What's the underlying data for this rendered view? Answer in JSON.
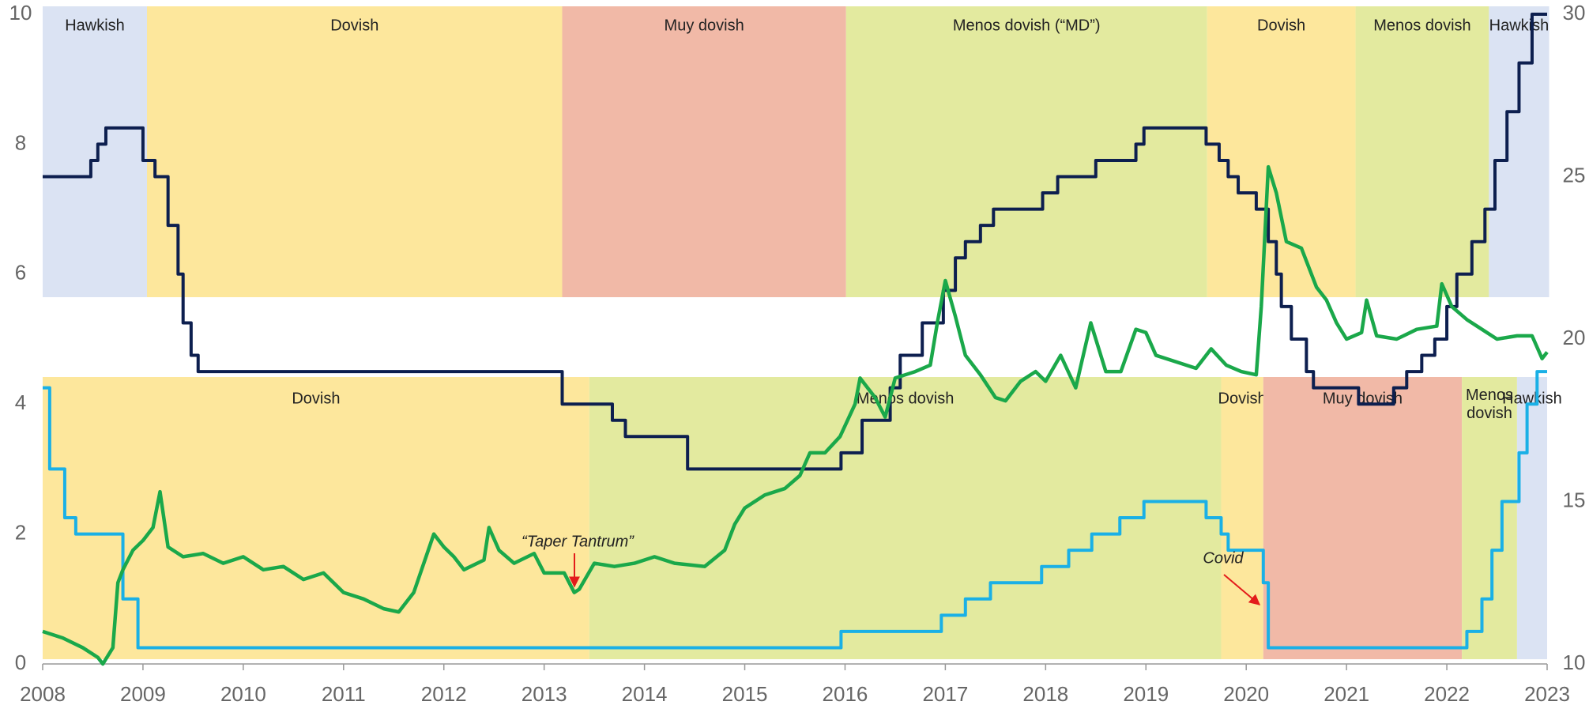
{
  "chart_data": {
    "type": "line",
    "drawstyle": "steps-post",
    "xlim": [
      2008,
      2023
    ],
    "xticks": [
      2008,
      2009,
      2010,
      2011,
      2012,
      2013,
      2014,
      2015,
      2016,
      2017,
      2018,
      2019,
      2020,
      2021,
      2022,
      2023
    ],
    "ylim": [
      0,
      10
    ],
    "yticks": [
      0,
      2,
      4,
      6,
      8,
      10
    ],
    "y2lim": [
      10,
      30
    ],
    "y2ticks": [
      10,
      15,
      20,
      25,
      30
    ],
    "grid": false,
    "bands": {
      "top": [
        {
          "label": "Hawkish",
          "start": 2008.0,
          "end": 2009.04,
          "color": "#dbe3f3"
        },
        {
          "label": "Dovish",
          "start": 2009.04,
          "end": 2013.18,
          "color": "#fde79c"
        },
        {
          "label": "Muy dovish",
          "start": 2013.18,
          "end": 2016.01,
          "color": "#f1b9a7"
        },
        {
          "label": "Menos dovish (“MD”)",
          "start": 2016.01,
          "end": 2019.61,
          "color": "#e3ea9f"
        },
        {
          "label": "Dovish",
          "start": 2019.61,
          "end": 2021.09,
          "color": "#fde79c"
        },
        {
          "label": "Menos dovish",
          "start": 2021.09,
          "end": 2022.42,
          "color": "#e3ea9f"
        },
        {
          "label": "Hawkish",
          "start": 2022.42,
          "end": 2023.02,
          "color": "#dbe3f3"
        }
      ],
      "bottom": [
        {
          "label": "Dovish",
          "start": 2008.0,
          "end": 2013.45,
          "color": "#fde79c"
        },
        {
          "label": "Menos dovish",
          "start": 2013.45,
          "end": 2019.75,
          "color": "#e3ea9f"
        },
        {
          "label": "Dovish",
          "start": 2019.75,
          "end": 2020.17,
          "color": "#fde79c"
        },
        {
          "label": "Muy dovish",
          "start": 2020.17,
          "end": 2022.15,
          "color": "#f1b9a7"
        },
        {
          "label": "Menos dovish",
          "start": 2022.15,
          "end": 2022.7,
          "color": "#e3ea9f"
        },
        {
          "label": "Hawkish",
          "start": 2022.7,
          "end": 2023.0,
          "color": "#dbe3f3"
        }
      ]
    },
    "series": [
      {
        "color": "#1ab0e6",
        "axis": "y",
        "step": true,
        "x": [
          2008.0,
          2008.07,
          2008.22,
          2008.33,
          2008.8,
          2008.95,
          2015.96,
          2016.96,
          2017.2,
          2017.45,
          2017.96,
          2018.23,
          2018.46,
          2018.74,
          2018.98,
          2019.6,
          2019.75,
          2019.82,
          2020.17,
          2020.22,
          2022.2,
          2022.35,
          2022.45,
          2022.55,
          2022.72,
          2022.8,
          2022.9,
          2023.0
        ],
        "values": [
          4.25,
          3.0,
          2.25,
          2.0,
          1.0,
          0.25,
          0.5,
          0.75,
          1.0,
          1.25,
          1.5,
          1.75,
          2.0,
          2.25,
          2.5,
          2.25,
          2.0,
          1.75,
          1.25,
          0.25,
          0.5,
          1.0,
          1.75,
          2.5,
          3.25,
          4.0,
          4.5,
          4.5
        ]
      },
      {
        "color": "#0d1f4f",
        "axis": "y",
        "step": true,
        "x": [
          2008.0,
          2008.48,
          2008.55,
          2008.63,
          2009.0,
          2009.12,
          2009.25,
          2009.35,
          2009.4,
          2009.48,
          2009.55,
          2013.18,
          2013.68,
          2013.81,
          2014.43,
          2015.96,
          2016.17,
          2016.45,
          2016.55,
          2016.77,
          2016.98,
          2017.1,
          2017.2,
          2017.35,
          2017.48,
          2017.97,
          2018.12,
          2018.5,
          2018.9,
          2018.98,
          2019.6,
          2019.73,
          2019.82,
          2019.92,
          2020.1,
          2020.22,
          2020.3,
          2020.35,
          2020.45,
          2020.6,
          2020.67,
          2021.12,
          2021.47,
          2021.6,
          2021.75,
          2021.88,
          2022.0,
          2022.1,
          2022.25,
          2022.38,
          2022.48,
          2022.6,
          2022.72,
          2022.85,
          2023.0
        ],
        "values": [
          7.5,
          7.75,
          8.0,
          8.25,
          7.75,
          7.5,
          6.75,
          6.0,
          5.25,
          4.75,
          4.5,
          4.0,
          3.75,
          3.5,
          3.0,
          3.25,
          3.75,
          4.25,
          4.75,
          5.25,
          5.75,
          6.25,
          6.5,
          6.75,
          7.0,
          7.25,
          7.5,
          7.75,
          8.0,
          8.25,
          8.0,
          7.75,
          7.5,
          7.25,
          7.0,
          6.5,
          6.0,
          5.5,
          5.0,
          4.5,
          4.25,
          4.0,
          4.25,
          4.5,
          4.75,
          5.0,
          5.5,
          6.0,
          6.5,
          7.0,
          7.75,
          8.5,
          9.25,
          10.0,
          10.0
        ]
      },
      {
        "color": "#1aa84a",
        "axis": "y2",
        "step": false,
        "x": [
          2008.0,
          2008.2,
          2008.4,
          2008.55,
          2008.6,
          2008.7,
          2008.75,
          2008.8,
          2008.9,
          2009.0,
          2009.1,
          2009.17,
          2009.25,
          2009.4,
          2009.6,
          2009.8,
          2010.0,
          2010.2,
          2010.4,
          2010.6,
          2010.8,
          2011.0,
          2011.2,
          2011.4,
          2011.55,
          2011.7,
          2011.8,
          2011.9,
          2012.0,
          2012.1,
          2012.2,
          2012.4,
          2012.45,
          2012.55,
          2012.7,
          2012.9,
          2013.0,
          2013.2,
          2013.3,
          2013.35,
          2013.5,
          2013.7,
          2013.9,
          2014.1,
          2014.3,
          2014.6,
          2014.8,
          2014.9,
          2015.0,
          2015.2,
          2015.4,
          2015.55,
          2015.65,
          2015.8,
          2015.95,
          2016.1,
          2016.15,
          2016.3,
          2016.4,
          2016.5,
          2016.7,
          2016.85,
          2016.92,
          2017.0,
          2017.1,
          2017.2,
          2017.35,
          2017.5,
          2017.6,
          2017.75,
          2017.9,
          2018.0,
          2018.15,
          2018.3,
          2018.45,
          2018.6,
          2018.75,
          2018.9,
          2019.0,
          2019.1,
          2019.3,
          2019.5,
          2019.65,
          2019.8,
          2019.95,
          2020.1,
          2020.15,
          2020.22,
          2020.3,
          2020.4,
          2020.55,
          2020.7,
          2020.8,
          2020.9,
          2021.0,
          2021.15,
          2021.2,
          2021.3,
          2021.5,
          2021.7,
          2021.9,
          2021.95,
          2022.05,
          2022.2,
          2022.3,
          2022.5,
          2022.7,
          2022.85,
          2022.95,
          2023.0
        ],
        "values": [
          11.0,
          10.8,
          10.5,
          10.2,
          10.0,
          10.5,
          12.5,
          12.9,
          13.5,
          13.8,
          14.2,
          15.3,
          13.6,
          13.3,
          13.4,
          13.1,
          13.3,
          12.9,
          13.0,
          12.6,
          12.8,
          12.2,
          12.0,
          11.7,
          11.6,
          12.2,
          13.1,
          14.0,
          13.6,
          13.3,
          12.9,
          13.2,
          14.2,
          13.5,
          13.1,
          13.4,
          12.8,
          12.8,
          12.2,
          12.3,
          13.1,
          13.0,
          13.1,
          13.3,
          13.1,
          13.0,
          13.5,
          14.3,
          14.8,
          15.2,
          15.4,
          15.8,
          16.5,
          16.5,
          17.0,
          18.0,
          18.8,
          18.2,
          17.6,
          18.8,
          19.0,
          19.2,
          20.5,
          21.8,
          20.7,
          19.5,
          18.9,
          18.2,
          18.1,
          18.7,
          19.0,
          18.7,
          19.5,
          18.5,
          20.5,
          19.0,
          19.0,
          20.3,
          20.2,
          19.5,
          19.3,
          19.1,
          19.7,
          19.2,
          19.0,
          18.9,
          21.0,
          25.3,
          24.5,
          23.0,
          22.8,
          21.6,
          21.2,
          20.5,
          20.0,
          20.2,
          21.2,
          20.1,
          20.0,
          20.3,
          20.4,
          21.7,
          21.0,
          20.6,
          20.4,
          20.0,
          20.1,
          20.1,
          19.4,
          19.6
        ]
      }
    ],
    "annotations": [
      {
        "text": "“Taper Tantrum”"
      },
      {
        "text": "Covid"
      }
    ]
  }
}
